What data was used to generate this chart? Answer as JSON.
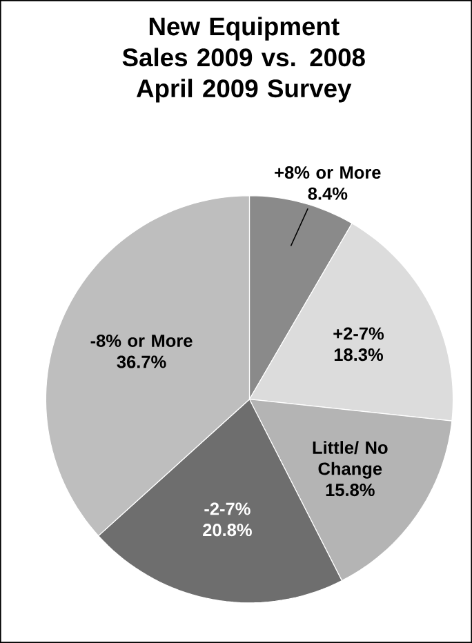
{
  "chart_data": {
    "type": "pie",
    "title": "New Equipment Sales 2009 vs. 2008",
    "subtitle": "April 2009 Survey",
    "categories": [
      "+8% or More",
      "+2-7%",
      "Little/ No Change",
      "-2-7%",
      "-8% or More"
    ],
    "values": [
      8.4,
      18.3,
      15.8,
      20.8,
      36.7
    ],
    "value_labels": [
      "8.4%",
      "18.3%",
      "15.8%",
      "20.8%",
      "36.7%"
    ],
    "colors": [
      "#8a8a8a",
      "#dcdcdc",
      "#b4b4b4",
      "#6e6e6e",
      "#bebebe"
    ]
  }
}
